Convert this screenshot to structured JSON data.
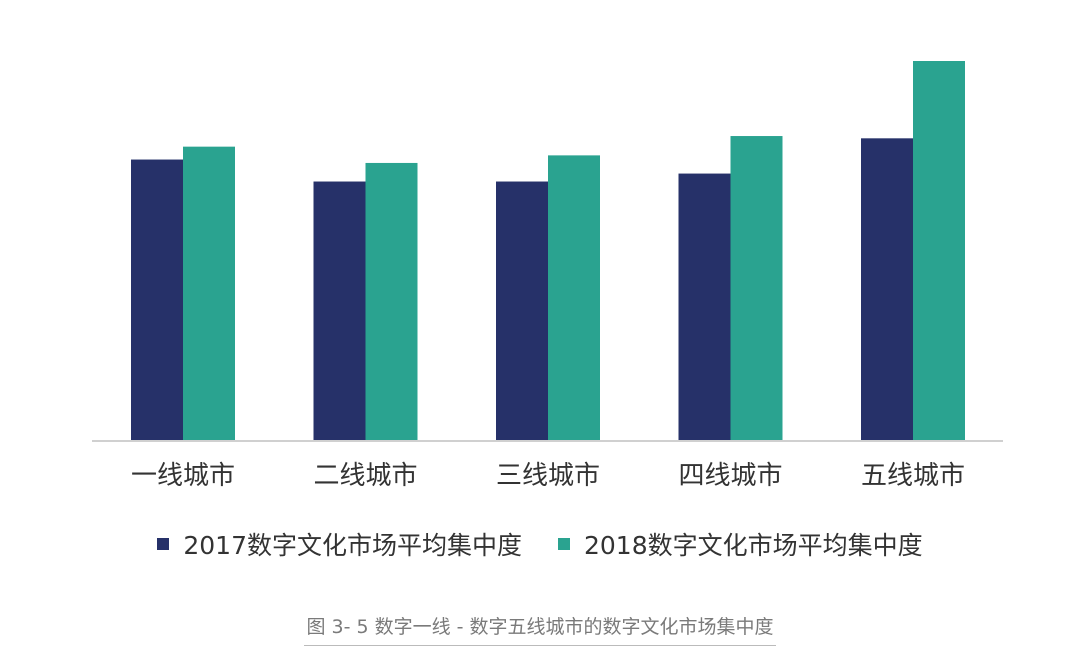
{
  "chart_data": {
    "type": "bar",
    "categories": [
      "一线城市",
      "二线城市",
      "三线城市",
      "四线城市",
      "五线城市"
    ],
    "series": [
      {
        "name": "2017数字文化市场平均集中度",
        "color": "#263169",
        "values": [
          74,
          68.2,
          68.2,
          70.3,
          79.6
        ]
      },
      {
        "name": "2018数字文化市场平均集中度",
        "color": "#2aa390",
        "values": [
          77.4,
          73.1,
          75.1,
          80.2,
          100
        ]
      }
    ],
    "ylim": [
      0,
      100
    ],
    "grid": false,
    "legend_position": "bottom"
  },
  "caption": "图 3- 5 数字一线 - 数字五线城市的数字文化市场集中度"
}
